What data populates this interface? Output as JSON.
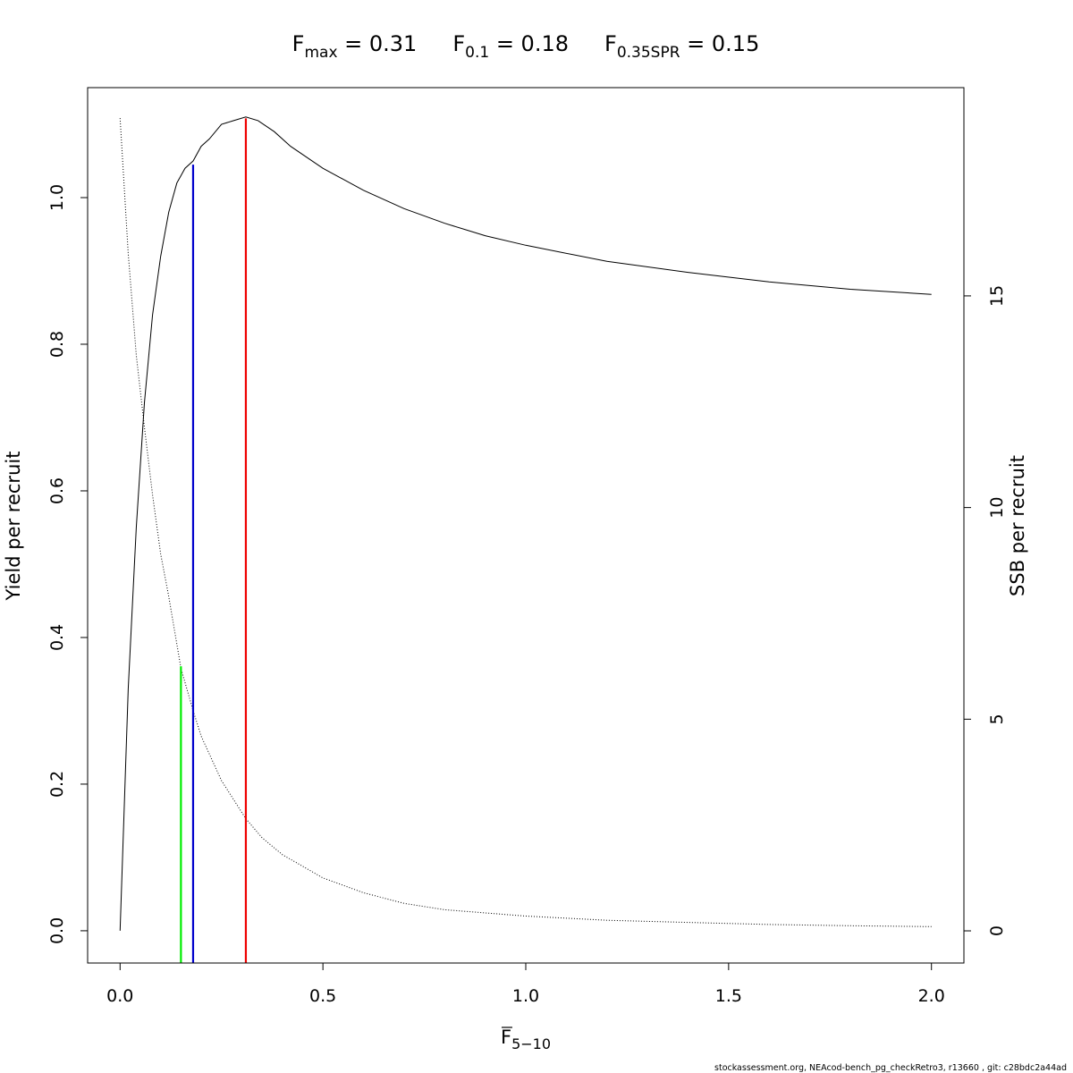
{
  "chart_data": {
    "type": "line",
    "title_parts": [
      {
        "label": "F",
        "sub": "max",
        "eq": "=",
        "value": "0.31"
      },
      {
        "label": "F",
        "sub": "0.1",
        "eq": "=",
        "value": "0.18"
      },
      {
        "label": "F",
        "sub": "0.35SPR",
        "eq": "=",
        "value": "0.15"
      }
    ],
    "xlabel": {
      "main": "F",
      "sub": "5−10"
    },
    "ylabel": "Yield per recruit",
    "y2label": "SSB per recruit",
    "xlim": [
      -0.08,
      2.08
    ],
    "ylim": [
      -0.044,
      1.15
    ],
    "y2lim": [
      -0.76,
      19.92
    ],
    "xticks": [
      "0.0",
      "0.5",
      "1.0",
      "1.5",
      "2.0"
    ],
    "yticks": [
      "0.0",
      "0.2",
      "0.4",
      "0.6",
      "0.8",
      "1.0"
    ],
    "y2ticks": [
      "0",
      "5",
      "10",
      "15"
    ],
    "grid": false,
    "series": [
      {
        "axis": "left",
        "style": "solid",
        "color": "#000000",
        "x": [
          0,
          0.02,
          0.04,
          0.06,
          0.08,
          0.1,
          0.12,
          0.14,
          0.15,
          0.16,
          0.18,
          0.2,
          0.22,
          0.25,
          0.28,
          0.31,
          0.34,
          0.38,
          0.42,
          0.5,
          0.6,
          0.7,
          0.8,
          0.9,
          1.0,
          1.2,
          1.4,
          1.6,
          1.8,
          2.0
        ],
        "y": [
          0,
          0.33,
          0.55,
          0.72,
          0.84,
          0.92,
          0.98,
          1.02,
          1.03,
          1.04,
          1.05,
          1.07,
          1.08,
          1.1,
          1.105,
          1.11,
          1.105,
          1.09,
          1.07,
          1.04,
          1.01,
          0.985,
          0.965,
          0.948,
          0.935,
          0.913,
          0.898,
          0.885,
          0.875,
          0.868
        ]
      },
      {
        "axis": "right",
        "style": "dotted",
        "color": "#000000",
        "x": [
          0,
          0.02,
          0.04,
          0.06,
          0.08,
          0.1,
          0.12,
          0.15,
          0.18,
          0.2,
          0.25,
          0.31,
          0.35,
          0.4,
          0.5,
          0.6,
          0.7,
          0.8,
          1.0,
          1.2,
          1.4,
          1.6,
          1.8,
          2.0
        ],
        "y": [
          19.2,
          16.0,
          13.6,
          11.9,
          10.3,
          8.9,
          7.9,
          6.2,
          5.2,
          4.6,
          3.55,
          2.65,
          2.2,
          1.8,
          1.25,
          0.9,
          0.65,
          0.5,
          0.35,
          0.25,
          0.2,
          0.15,
          0.12,
          0.1
        ]
      }
    ],
    "reference_lines": [
      {
        "name": "F0.35SPR",
        "x": 0.15,
        "y_top_axis": "right",
        "y_top": 6.25,
        "color": "#00ee00"
      },
      {
        "name": "F0.1",
        "x": 0.18,
        "y_top_axis": "left",
        "y_top": 1.045,
        "color": "#0000cc"
      },
      {
        "name": "Fmax",
        "x": 0.31,
        "y_top_axis": "left",
        "y_top": 1.108,
        "color": "#ee0000"
      }
    ]
  },
  "footer": "stockassessment.org, NEAcod-bench_pg_checkRetro3, r13660 , git: c28bdc2a44ad"
}
